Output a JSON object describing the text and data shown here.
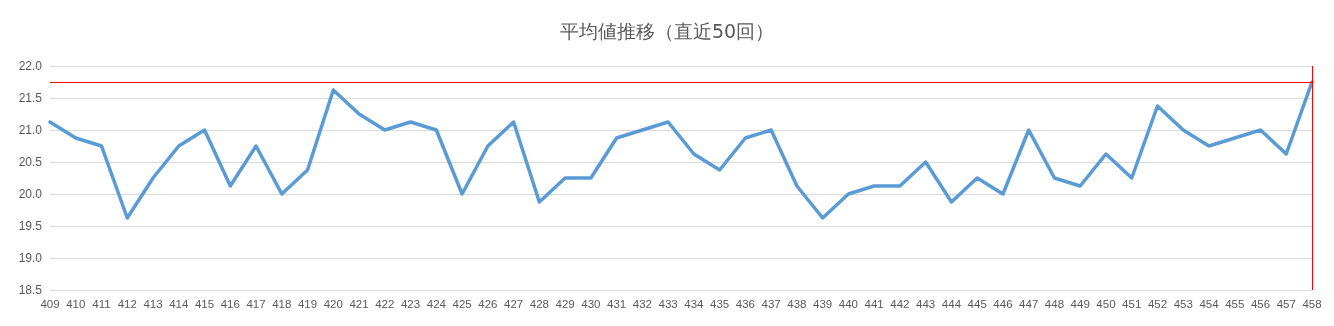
{
  "chart_data": {
    "type": "line",
    "title": "平均値推移（直近50回）",
    "categories": [
      "409",
      "410",
      "411",
      "412",
      "413",
      "414",
      "415",
      "416",
      "417",
      "418",
      "419",
      "420",
      "421",
      "422",
      "423",
      "424",
      "425",
      "426",
      "427",
      "428",
      "429",
      "430",
      "431",
      "432",
      "433",
      "434",
      "435",
      "436",
      "437",
      "438",
      "439",
      "440",
      "441",
      "442",
      "443",
      "444",
      "445",
      "446",
      "447",
      "448",
      "449",
      "450",
      "451",
      "452",
      "453",
      "454",
      "455",
      "456",
      "457",
      "458"
    ],
    "series": [
      {
        "color": "#5b9bd5",
        "values": [
          21.125,
          20.875,
          20.75,
          19.625,
          20.25,
          20.75,
          21.0,
          20.125,
          20.75,
          20.0,
          20.375,
          21.625,
          21.25,
          21.0,
          21.125,
          21.0,
          20.0,
          20.75,
          21.125,
          19.875,
          20.25,
          20.25,
          20.875,
          21.0,
          21.125,
          20.625,
          20.375,
          20.875,
          21.0,
          20.125,
          19.625,
          20.0,
          20.125,
          20.125,
          20.5,
          19.875,
          20.25,
          20.0,
          21.0,
          20.25,
          20.125,
          20.625,
          20.25,
          21.375,
          21.0,
          20.75,
          20.875,
          21.0,
          20.625,
          21.75
        ]
      }
    ],
    "ylim": [
      18.5,
      22.0
    ],
    "yticks": [
      18.5,
      {
        "value": 19,
        "label": "19.0"
      },
      19.5,
      {
        "value": 20,
        "label": "20.0"
      },
      20.5,
      {
        "value": 21,
        "label": "21.0"
      },
      21.5,
      {
        "value": 22,
        "label": "22.0"
      }
    ],
    "ref_lines": [
      {
        "axis": "y",
        "value": 21.75,
        "color": "#ff0000"
      },
      {
        "axis": "x",
        "value": "458",
        "color": "#ff0000"
      }
    ],
    "grid": "y",
    "marker": "none",
    "line_style": "solid"
  }
}
